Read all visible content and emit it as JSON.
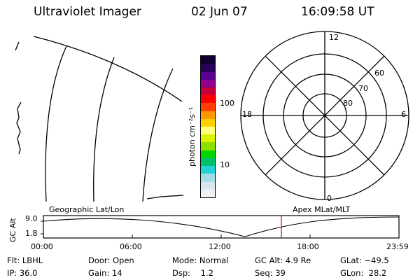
{
  "header": {
    "title": "Ultraviolet Imager",
    "date": "02 Jun 07",
    "time": "16:09:58 UT"
  },
  "colorbar": {
    "unit_label": "photon cm⁻²s⁻¹",
    "ticks": [
      "100",
      "10"
    ],
    "colors": [
      "#f2f2f2",
      "#d8e8ee",
      "#a6dbe6",
      "#22d2d6",
      "#00c070",
      "#00d800",
      "#8ee000",
      "#d8f400",
      "#ffff80",
      "#ffd000",
      "#ff9800",
      "#ff4000",
      "#ff0000",
      "#c8003a",
      "#90008c",
      "#5a0090",
      "#28005a",
      "#100030"
    ]
  },
  "polar": {
    "mlt_labels": [
      "12",
      "18",
      "6",
      "0"
    ],
    "lat_labels": [
      "60",
      "70",
      "80"
    ]
  },
  "timeline": {
    "left_title": "Geographic Lat/Lon",
    "right_title": "Apex MLat/MLT",
    "axis_label": "GC Alt",
    "y_ticks": [
      "9.0",
      "1.8"
    ],
    "x_ticks": [
      "00:00",
      "06:00",
      "12:00",
      "18:00",
      "23:59"
    ],
    "marker_color": "#c00000"
  },
  "footer": {
    "col1": [
      "Flt: LBHL",
      "IP: 36.0"
    ],
    "col2": [
      "Door: Open",
      "Gain: 14"
    ],
    "col3": [
      "Mode: Normal",
      "Dsp:    1.2"
    ],
    "col4": [
      "GC Alt: 4.9 Re",
      "Seq: 39"
    ],
    "col5": [
      "GLat: −49.5",
      "GLon:  28.2"
    ]
  }
}
